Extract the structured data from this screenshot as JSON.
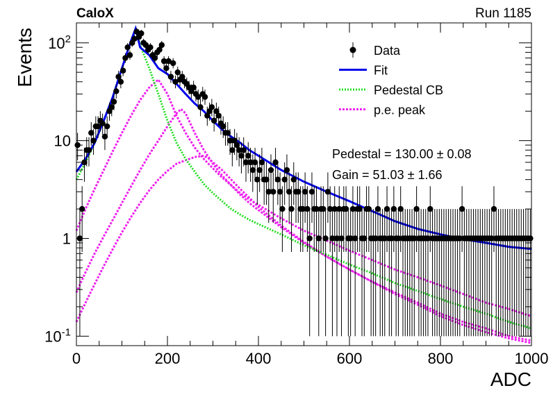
{
  "header": {
    "experiment": "CaloX",
    "run": "Run 1185"
  },
  "colors": {
    "data": "#000000",
    "fit": "#0000ee",
    "pedestal": "#22dd22",
    "pe_peak": "#ee22ee"
  },
  "annotations": {
    "pedestal": "Pedestal = 130.00 ± 0.08",
    "gain": "Gain = 51.03 ± 1.66"
  },
  "chart_data": {
    "type": "scatter",
    "title": "",
    "xlabel": "ADC",
    "ylabel": "Events",
    "xlim": [
      0,
      1000
    ],
    "ylim": [
      0.08,
      160
    ],
    "yscale": "log",
    "grid": false,
    "legend_position": "top-right",
    "x_ticks": [
      "0",
      "200",
      "400",
      "600",
      "800",
      "1000"
    ],
    "y_ticks": [
      {
        "base": "10",
        "exp": "-1",
        "value": 0.1
      },
      {
        "base": "1",
        "exp": "",
        "value": 1
      },
      {
        "base": "10",
        "exp": "",
        "value": 10
      },
      {
        "base": "10",
        "exp": "2",
        "value": 100
      }
    ],
    "legend": [
      {
        "label": "Data",
        "style": "marker"
      },
      {
        "label": "Fit",
        "style": "solid"
      },
      {
        "label": "Pedestal CB",
        "style": "dotted"
      },
      {
        "label": "p.e. peak",
        "style": "dashed"
      }
    ],
    "data_points": {
      "x": [
        0,
        5,
        10,
        15,
        20,
        25,
        30,
        35,
        40,
        45,
        50,
        55,
        60,
        65,
        70,
        75,
        80,
        85,
        90,
        95,
        100,
        105,
        110,
        115,
        120,
        125,
        130,
        135,
        140,
        145,
        150,
        155,
        160,
        165,
        170,
        175,
        180,
        185,
        190,
        195,
        200,
        205,
        210,
        215,
        220,
        225,
        230,
        235,
        240,
        245,
        250,
        255,
        260,
        265,
        270,
        275,
        280,
        285,
        290,
        295,
        300,
        305,
        310,
        315,
        320,
        325,
        330,
        335,
        340,
        345,
        350,
        355,
        360,
        365,
        370,
        375,
        380,
        385,
        390,
        395,
        400,
        405,
        410,
        415,
        420,
        425,
        430,
        435,
        440,
        445,
        450,
        455,
        460,
        465,
        470,
        475,
        480,
        485,
        490,
        495,
        500,
        505,
        510,
        515,
        520,
        525,
        530,
        535,
        540,
        545,
        550,
        555,
        560,
        565,
        570,
        575,
        580,
        585,
        590,
        595,
        600,
        605,
        610,
        615,
        620,
        625,
        630,
        635,
        640,
        645,
        650,
        655,
        660,
        665,
        670,
        675,
        680,
        685,
        690,
        695,
        700,
        705,
        710,
        715,
        720,
        725,
        730,
        735,
        740,
        745,
        750,
        755,
        760,
        765,
        770,
        775,
        780,
        785,
        790,
        795,
        800,
        805,
        810,
        815,
        820,
        825,
        830,
        835,
        840,
        845,
        850,
        855,
        860,
        865,
        870,
        875,
        880,
        885,
        890,
        895,
        900,
        905,
        910,
        915,
        920,
        925,
        930,
        935,
        940,
        945,
        950,
        955,
        960,
        965,
        970,
        975,
        980,
        985,
        990,
        995
      ],
      "y": [
        9,
        1,
        2,
        6,
        8,
        8,
        12,
        10,
        14,
        14,
        16,
        15,
        11,
        14,
        20,
        22,
        25,
        32,
        45,
        40,
        52,
        70,
        90,
        75,
        100,
        110,
        130,
        115,
        125,
        100,
        95,
        85,
        90,
        75,
        70,
        80,
        85,
        95,
        65,
        55,
        65,
        45,
        62,
        40,
        50,
        42,
        45,
        40,
        38,
        35,
        32,
        35,
        30,
        28,
        22,
        30,
        28,
        18,
        20,
        22,
        16,
        20,
        18,
        15,
        14,
        12,
        12,
        10,
        8,
        10,
        9,
        8,
        7,
        8,
        6,
        7,
        6,
        5,
        6,
        4,
        5,
        6,
        4,
        4,
        3,
        5,
        3,
        6,
        4,
        3,
        2,
        4,
        5,
        3,
        2,
        4,
        3,
        3,
        2,
        2,
        3,
        2,
        1,
        3,
        2,
        2,
        1,
        2,
        2,
        1,
        3,
        2,
        1,
        2,
        1,
        2,
        1,
        2,
        2,
        1,
        1,
        2,
        1,
        2,
        2,
        1,
        1,
        2,
        2,
        1,
        1,
        1,
        2,
        1,
        1,
        1,
        2,
        1,
        1,
        2,
        1,
        1,
        2,
        1,
        1,
        1,
        1,
        1,
        1,
        2,
        1,
        1,
        1,
        1,
        1,
        2,
        1,
        1,
        1,
        1,
        1,
        1,
        1,
        1,
        1,
        1,
        1,
        1,
        1,
        2,
        1,
        1,
        1,
        1,
        1,
        1,
        1,
        1,
        1,
        1,
        1,
        1,
        1,
        2,
        1,
        1,
        1,
        1,
        1,
        1,
        1,
        1,
        1,
        1,
        1,
        1,
        1,
        1,
        1,
        1
      ]
    },
    "fit_curve": {
      "x": [
        0,
        20,
        40,
        60,
        80,
        100,
        120,
        130,
        140,
        150,
        160,
        180,
        200,
        220,
        240,
        260,
        280,
        300,
        320,
        340,
        360,
        380,
        400,
        450,
        500,
        550,
        600,
        650,
        700,
        750,
        800,
        850,
        900,
        950,
        1000
      ],
      "y": [
        4.8,
        6.5,
        9.5,
        16,
        28,
        55,
        105,
        140,
        90,
        82,
        75,
        55,
        48,
        38,
        30,
        24,
        20,
        16,
        13,
        11,
        9.5,
        8,
        7,
        5,
        3.8,
        3,
        2.4,
        1.9,
        1.5,
        1.25,
        1.1,
        0.98,
        0.9,
        0.82,
        0.78
      ]
    },
    "pedestal_cb": {
      "x": [
        0,
        20,
        40,
        60,
        80,
        100,
        120,
        130,
        140,
        160,
        180,
        200,
        220,
        240,
        260,
        280,
        300,
        320,
        340,
        360,
        380,
        400,
        450,
        500,
        550,
        600,
        650,
        700,
        750,
        800,
        850,
        900,
        950,
        1000
      ],
      "y": [
        4,
        6,
        9.5,
        16,
        28,
        55,
        105,
        140,
        95,
        55,
        30,
        16,
        9.5,
        6.5,
        4.8,
        3.6,
        2.9,
        2.4,
        2.0,
        1.75,
        1.55,
        1.4,
        1.1,
        0.85,
        0.68,
        0.54,
        0.44,
        0.35,
        0.29,
        0.24,
        0.2,
        0.17,
        0.14,
        0.12
      ]
    },
    "pe_peaks": [
      {
        "x": [
          0,
          20,
          40,
          60,
          80,
          100,
          120,
          140,
          160,
          180,
          200,
          220,
          240,
          260,
          280,
          300,
          320,
          340,
          360,
          380,
          400,
          450,
          500,
          550,
          600,
          650,
          700,
          750,
          800,
          850,
          900,
          950,
          1000
        ],
        "y": [
          1.2,
          2.0,
          3.2,
          5.0,
          7.8,
          12,
          18,
          26,
          35,
          42,
          30,
          18,
          12,
          8.5,
          6.5,
          5.2,
          4.2,
          3.5,
          2.9,
          2.5,
          2.2,
          1.6,
          1.2,
          0.95,
          0.75,
          0.6,
          0.48,
          0.4,
          0.33,
          0.27,
          0.22,
          0.19,
          0.16
        ]
      },
      {
        "x": [
          0,
          20,
          40,
          60,
          80,
          100,
          120,
          140,
          160,
          180,
          200,
          220,
          230,
          240,
          260,
          280,
          300,
          320,
          340,
          360,
          380,
          400,
          450,
          500,
          550,
          600,
          650,
          700,
          750,
          800,
          850,
          900,
          950,
          1000
        ],
        "y": [
          0.28,
          0.45,
          0.7,
          1.05,
          1.55,
          2.3,
          3.4,
          5.0,
          7.2,
          10,
          14,
          19,
          21,
          19,
          12,
          8,
          5.8,
          4.4,
          3.5,
          2.8,
          2.3,
          1.95,
          1.3,
          0.9,
          0.65,
          0.48,
          0.36,
          0.28,
          0.22,
          0.17,
          0.14,
          0.12,
          0.1,
          0.09
        ]
      },
      {
        "x": [
          0,
          20,
          40,
          60,
          80,
          100,
          120,
          140,
          160,
          180,
          200,
          220,
          240,
          260,
          280,
          290,
          300,
          320,
          340,
          360,
          380,
          400,
          450,
          500,
          550,
          600,
          650,
          700,
          750,
          800,
          850,
          900,
          950,
          1000
        ],
        "y": [
          0.14,
          0.22,
          0.34,
          0.52,
          0.78,
          1.15,
          1.65,
          2.3,
          3.1,
          4.0,
          4.9,
          5.8,
          6.3,
          6.8,
          7.0,
          6.6,
          6.0,
          5.0,
          4.0,
          3.2,
          2.6,
          2.1,
          1.35,
          0.92,
          0.65,
          0.48,
          0.36,
          0.27,
          0.21,
          0.16,
          0.13,
          0.11,
          0.095,
          0.085
        ]
      }
    ]
  }
}
